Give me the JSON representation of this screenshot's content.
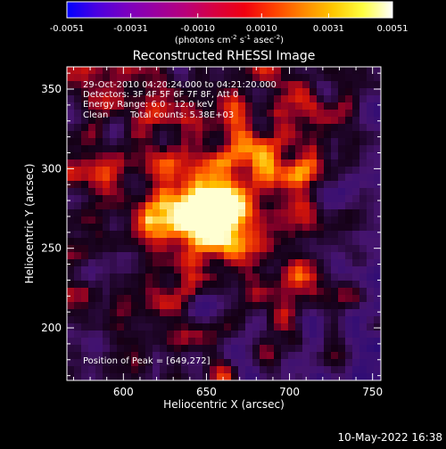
{
  "colorbar": {
    "tick_labels": [
      "-0.0051",
      "-0.0031",
      "-0.0010",
      "0.0010",
      "0.0031",
      "0.0051"
    ],
    "tick_values": [
      -0.0051,
      -0.0031,
      -0.001,
      0.001,
      0.0031,
      0.0051
    ],
    "range": [
      -0.0051,
      0.0051
    ],
    "units_label": "(photons cm",
    "units_sup1": "-2",
    "units_mid": " s",
    "units_sup2": "-1",
    "units_tail": " asec",
    "units_sup3": "-2",
    "units_close": ")",
    "gradient_colors": [
      "#0000ff",
      "#4a00e0",
      "#7a00c0",
      "#9a00a0",
      "#b8007a",
      "#d80040",
      "#f00010",
      "#ff4000",
      "#ff8800",
      "#ffc800",
      "#ffff40",
      "#ffffff"
    ]
  },
  "plot": {
    "title": "Reconstructed RHESSI Image",
    "xlabel": "Heliocentric X (arcsec)",
    "ylabel": "Heliocentric Y (arcsec)",
    "x_range": [
      566,
      755
    ],
    "y_range": [
      167,
      364
    ],
    "x_ticks": [
      600,
      650,
      700,
      750
    ],
    "y_ticks": [
      200,
      250,
      300,
      350
    ],
    "x_tick_labels": [
      "600",
      "650",
      "700",
      "750"
    ],
    "y_tick_labels": [
      "200",
      "250",
      "300",
      "350"
    ]
  },
  "annotations": {
    "time_range": "29-Oct-2010 04:20:24.000 to 04:21:20.000",
    "detectors": "Detectors: 3F 4F 5F 6F 7F 8F, Att 0",
    "energy": "Energy Range: 6.0 - 12.0 keV",
    "clean_method": "Clean",
    "total_counts": "Total counts: 5.38E+03",
    "peak_position": "Position of Peak = [649,272]"
  },
  "peak": {
    "x": 649,
    "y": 272
  },
  "footer": {
    "timestamp": "10-May-2022 16:38"
  },
  "image_background_colors": {
    "negative": "#2a0a5a",
    "zero": "#120018",
    "positive_low": "#8a0030",
    "positive_mid": "#e02000",
    "positive_high": "#ffb000",
    "peak": "#ffffe0"
  }
}
